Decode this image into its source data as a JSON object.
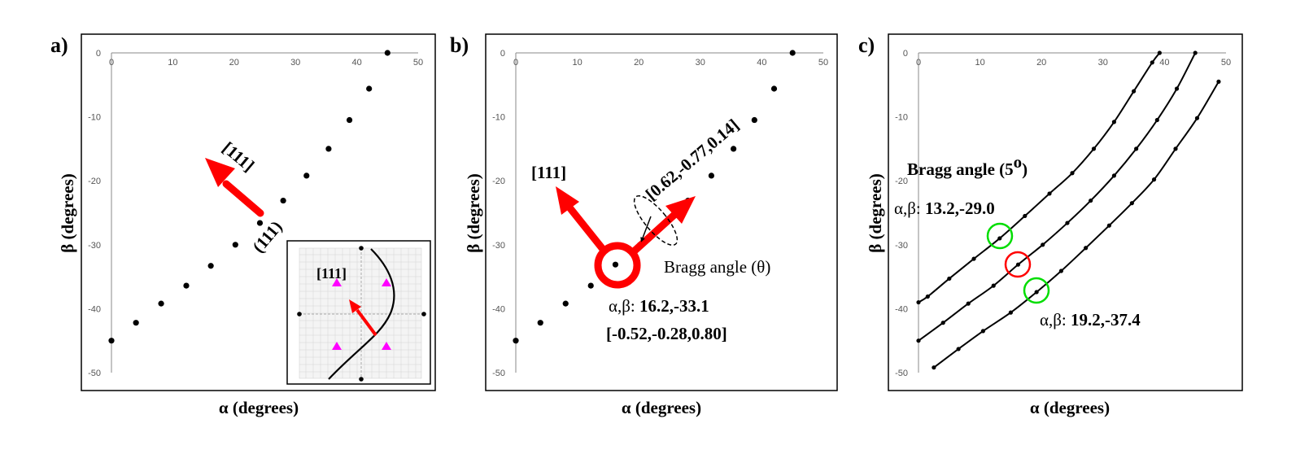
{
  "figure": {
    "panels": [
      {
        "label": "a)",
        "annotations": {
          "arrow_label": "[111]",
          "plane_label": "(111)",
          "inset_label": "[111]"
        }
      },
      {
        "label": "b)",
        "annotations": {
          "arrow1_label": "[111]",
          "arrow2_label": "[0.62,-0.77,0.14]",
          "bragg_label": "Bragg angle (θ)",
          "point_prefix": "α,β: ",
          "point_value": "16.2,-33.1",
          "vector": "[-0.52,-0.28,0.80]"
        }
      },
      {
        "label": "c)",
        "annotations": {
          "bragg_label": "Bragg angle (5",
          "bragg_sup": "o",
          "bragg_close": ")",
          "p1_prefix": "α,β: ",
          "p1_value": "13.2,-29.0",
          "p2_prefix": "α,β: ",
          "p2_value": "19.2,-37.4"
        }
      }
    ],
    "colors": {
      "arrow": "#ff0000",
      "circle_red": "#ff0000",
      "circle_green": "#00dd00",
      "inset_marker": "#ff00ff"
    }
  },
  "chart_data": [
    {
      "type": "scatter",
      "panel": "a)",
      "xlabel": "α (degrees)",
      "ylabel": "β (degrees)",
      "xlim": [
        0,
        50
      ],
      "ylim": [
        -50,
        0
      ],
      "xticks": [
        0,
        10,
        20,
        30,
        40,
        50
      ],
      "yticks": [
        0,
        -10,
        -20,
        -30,
        -40,
        -50
      ],
      "grid": false,
      "series": [
        {
          "points": [
            [
              0,
              -45
            ],
            [
              4,
              -42.2
            ],
            [
              8.1,
              -39.2
            ],
            [
              12.2,
              -36.4
            ],
            [
              16.2,
              -33.3
            ],
            [
              20.2,
              -30
            ],
            [
              24.2,
              -26.6
            ],
            [
              28,
              -23.1
            ],
            [
              31.8,
              -19.2
            ],
            [
              35.4,
              -15
            ],
            [
              38.8,
              -10.5
            ],
            [
              42,
              -5.6
            ],
            [
              45,
              0
            ]
          ]
        }
      ]
    },
    {
      "type": "scatter",
      "panel": "b)",
      "xlabel": "α (degrees)",
      "ylabel": "β (degrees)",
      "xlim": [
        0,
        50
      ],
      "ylim": [
        -50,
        0
      ],
      "xticks": [
        0,
        10,
        20,
        30,
        40,
        50
      ],
      "yticks": [
        0,
        -10,
        -20,
        -30,
        -40,
        -50
      ],
      "grid": false,
      "series": [
        {
          "points": [
            [
              0,
              -45
            ],
            [
              4,
              -42.2
            ],
            [
              8.1,
              -39.2
            ],
            [
              12.2,
              -36.4
            ],
            [
              16.2,
              -33.1
            ],
            [
              20.2,
              -30
            ],
            [
              24.2,
              -26.6
            ],
            [
              28,
              -23.1
            ],
            [
              31.8,
              -19.2
            ],
            [
              35.4,
              -15
            ],
            [
              38.8,
              -10.5
            ],
            [
              42,
              -5.6
            ],
            [
              45,
              0
            ]
          ]
        }
      ]
    },
    {
      "type": "line",
      "panel": "c)",
      "xlabel": "α (degrees)",
      "ylabel": "β (degrees)",
      "xlim": [
        0,
        50
      ],
      "ylim": [
        -50,
        0
      ],
      "xticks": [
        0,
        10,
        20,
        30,
        40,
        50
      ],
      "yticks": [
        0,
        -10,
        -20,
        -30,
        -40,
        -50
      ],
      "grid": false,
      "series": [
        {
          "points": [
            [
              0,
              -39
            ],
            [
              1.5,
              -38.1
            ],
            [
              5,
              -35.3
            ],
            [
              9,
              -32.2
            ],
            [
              13.2,
              -29
            ],
            [
              17.3,
              -25.5
            ],
            [
              21.3,
              -22
            ],
            [
              25,
              -18.8
            ],
            [
              28.5,
              -15
            ],
            [
              31.8,
              -10.8
            ],
            [
              35,
              -6
            ],
            [
              38,
              -1.5
            ],
            [
              39.2,
              0
            ]
          ]
        },
        {
          "points": [
            [
              0,
              -45
            ],
            [
              4,
              -42.2
            ],
            [
              8.1,
              -39.2
            ],
            [
              12.2,
              -36.4
            ],
            [
              16.2,
              -33.1
            ],
            [
              20.2,
              -30
            ],
            [
              24.2,
              -26.6
            ],
            [
              28,
              -23.1
            ],
            [
              31.8,
              -19.2
            ],
            [
              35.4,
              -15
            ],
            [
              38.8,
              -10.5
            ],
            [
              42,
              -5.6
            ],
            [
              45,
              0
            ]
          ]
        },
        {
          "points": [
            [
              2.5,
              -49.2
            ],
            [
              6.5,
              -46.3
            ],
            [
              10.5,
              -43.5
            ],
            [
              15,
              -40.6
            ],
            [
              19.2,
              -37.4
            ],
            [
              23.2,
              -34.1
            ],
            [
              27.2,
              -30.5
            ],
            [
              31,
              -27
            ],
            [
              34.7,
              -23.5
            ],
            [
              38.3,
              -19.8
            ],
            [
              41.8,
              -15
            ],
            [
              45.3,
              -10.2
            ],
            [
              48.8,
              -4.5
            ]
          ]
        }
      ]
    }
  ]
}
